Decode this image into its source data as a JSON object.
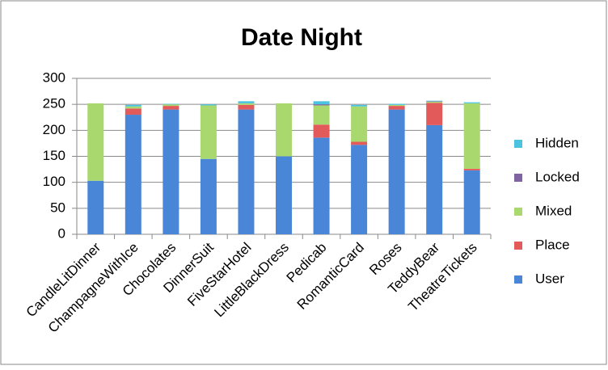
{
  "chart_data": {
    "type": "stacked-bar",
    "title": "Date Night",
    "categories": [
      "CandleLitDinner",
      "ChampagneWithIce",
      "Chocolates",
      "DinnerSuit",
      "FiveStarHotel",
      "LittleBlackDress",
      "Pedicab",
      "RomanticCard",
      "Roses",
      "TeddyBear",
      "TheatreTickets"
    ],
    "series": [
      {
        "name": "User",
        "color": "#4a86d8",
        "values": [
          103,
          230,
          240,
          145,
          240,
          150,
          186,
          172,
          240,
          210,
          123
        ]
      },
      {
        "name": "Place",
        "color": "#e35a5a",
        "values": [
          0,
          12,
          7,
          0,
          9,
          0,
          25,
          6,
          7,
          43,
          3
        ]
      },
      {
        "name": "Mixed",
        "color": "#a9d86e",
        "values": [
          149,
          4,
          3,
          103,
          3,
          102,
          37,
          68,
          2,
          2,
          126
        ]
      },
      {
        "name": "Locked",
        "color": "#8064a2",
        "values": [
          0,
          0,
          0,
          0,
          0,
          0,
          2,
          0,
          0,
          1,
          0
        ]
      },
      {
        "name": "Hidden",
        "color": "#4bc3e0",
        "values": [
          0,
          3,
          1,
          2,
          4,
          0,
          6,
          3,
          2,
          1,
          2
        ]
      }
    ],
    "ylim": [
      0,
      300
    ],
    "yticks": [
      0,
      50,
      100,
      150,
      200,
      250,
      300
    ],
    "grid": true,
    "legend": "right"
  }
}
